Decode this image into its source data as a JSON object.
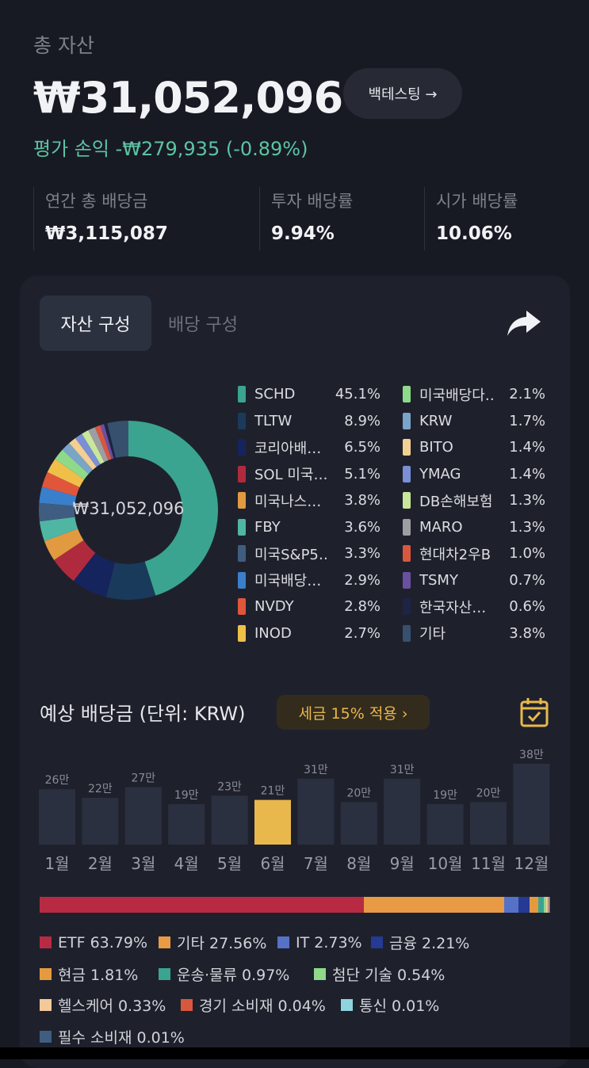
{
  "summary": {
    "label": "총 자산",
    "total": "₩31,052,096",
    "backtest_label": "백테스팅 →",
    "pnl": "평가 손익 -₩279,935 (-0.89%)",
    "pnl_color": "#5cc4a3"
  },
  "stats": [
    {
      "label": "연간 총 배당금",
      "value": "₩3,115,087"
    },
    {
      "label": "투자 배당률",
      "value": "9.94%"
    },
    {
      "label": "시가 배당률",
      "value": "10.06%"
    }
  ],
  "tabs": {
    "asset": "자산 구성",
    "dividend": "배당 구성",
    "share_icon": "share-arrow-icon"
  },
  "composition": {
    "center_label": "₩31,052,096",
    "items": [
      {
        "name": "SCHD",
        "pct": "45.1%",
        "value": 45.1,
        "color": "#3aa490"
      },
      {
        "name": "TLTW",
        "pct": "8.9%",
        "value": 8.9,
        "color": "#1a3a5c"
      },
      {
        "name": "코리아배…",
        "pct": "6.5%",
        "value": 6.5,
        "color": "#16245e"
      },
      {
        "name": "SOL 미국…",
        "pct": "5.1%",
        "value": 5.1,
        "color": "#b02a3e"
      },
      {
        "name": "미국나스…",
        "pct": "3.8%",
        "value": 3.8,
        "color": "#e19a3f"
      },
      {
        "name": "FBY",
        "pct": "3.6%",
        "value": 3.6,
        "color": "#4fb6a3"
      },
      {
        "name": "미국S&P5…",
        "pct": "3.3%",
        "value": 3.3,
        "color": "#3f5d80"
      },
      {
        "name": "미국배당…",
        "pct": "2.9%",
        "value": 2.9,
        "color": "#3a7fcc"
      },
      {
        "name": "NVDY",
        "pct": "2.8%",
        "value": 2.8,
        "color": "#e0563b"
      },
      {
        "name": "INOD",
        "pct": "2.7%",
        "value": 2.7,
        "color": "#f0bf4a"
      },
      {
        "name": "미국배당다…",
        "pct": "2.1%",
        "value": 2.1,
        "color": "#8fd98a"
      },
      {
        "name": "KRW",
        "pct": "1.7%",
        "value": 1.7,
        "color": "#7aa5c9"
      },
      {
        "name": "BITO",
        "pct": "1.4%",
        "value": 1.4,
        "color": "#f3cf93"
      },
      {
        "name": "YMAG",
        "pct": "1.4%",
        "value": 1.4,
        "color": "#7a8fd6"
      },
      {
        "name": "DB손해보험",
        "pct": "1.3%",
        "value": 1.3,
        "color": "#c9e79a"
      },
      {
        "name": "MARO",
        "pct": "1.3%",
        "value": 1.3,
        "color": "#9c9ea3"
      },
      {
        "name": "현대차2우B",
        "pct": "1.0%",
        "value": 1.0,
        "color": "#d9573f"
      },
      {
        "name": "TSMY",
        "pct": "0.7%",
        "value": 0.7,
        "color": "#6b4fa0"
      },
      {
        "name": "한국자산…",
        "pct": "0.6%",
        "value": 0.6,
        "color": "#1d2445"
      },
      {
        "name": "기타",
        "pct": "3.8%",
        "value": 3.8,
        "color": "#37506e"
      }
    ]
  },
  "dividend": {
    "title": "예상 배당금 (단위: KRW)",
    "tax_chip": "세금 15% 적용 ›",
    "calendar_icon": "calendar-check-icon"
  },
  "chart_data": {
    "type": "bar",
    "categories": [
      "1월",
      "2월",
      "3월",
      "4월",
      "5월",
      "6월",
      "7월",
      "8월",
      "9월",
      "10월",
      "11월",
      "12월"
    ],
    "values": [
      26,
      22,
      27,
      19,
      23,
      21,
      31,
      20,
      31,
      19,
      20,
      38
    ],
    "data_labels": [
      "26만",
      "22만",
      "27만",
      "19만",
      "23만",
      "21만",
      "31만",
      "20만",
      "31만",
      "19만",
      "20만",
      "38만"
    ],
    "highlight_index": 5,
    "bar_color": "#2b3040",
    "highlight_color": "#e9b84d",
    "ylim": [
      0,
      38
    ],
    "grid": false
  },
  "sectors": [
    {
      "label": "ETF 63.79%",
      "value": 63.79,
      "color": "#b82a42"
    },
    {
      "label": "기타 27.56%",
      "value": 27.56,
      "color": "#e99a45"
    },
    {
      "label": "IT 2.73%",
      "value": 2.73,
      "color": "#5572c8"
    },
    {
      "label": "금융 2.21%",
      "value": 2.21,
      "color": "#243a94"
    },
    {
      "label": "현금 1.81%",
      "value": 1.81,
      "color": "#e59a40"
    },
    {
      "label": "운송·물류 0.97%",
      "value": 0.97,
      "color": "#3aa490"
    },
    {
      "label": "첨단 기술 0.54%",
      "value": 0.54,
      "color": "#8fd98a"
    },
    {
      "label": "헬스케어 0.33%",
      "value": 0.33,
      "color": "#f3c99a"
    },
    {
      "label": "경기 소비재 0.04%",
      "value": 0.04,
      "color": "#d9573f"
    },
    {
      "label": "통신 0.01%",
      "value": 0.01,
      "color": "#8fd3de"
    },
    {
      "label": "필수 소비재 0.01%",
      "value": 0.01,
      "color": "#3f5d80"
    }
  ]
}
